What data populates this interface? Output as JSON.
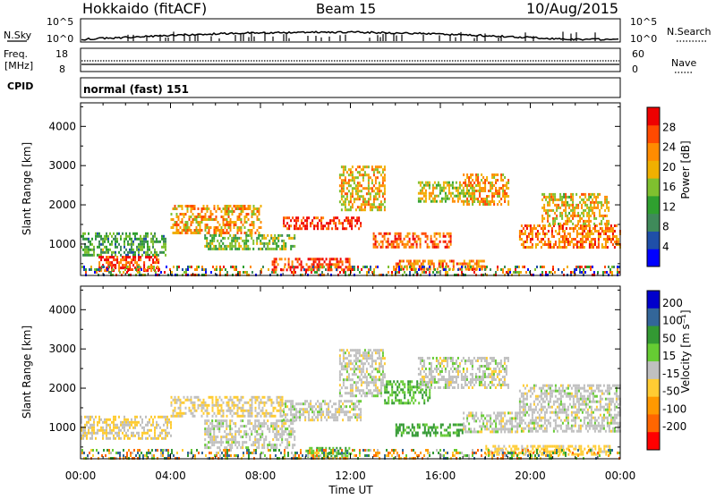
{
  "header": {
    "title": "Hokkaido (fitACF)",
    "beam": "Beam 15",
    "date": "10/Aug/2015"
  },
  "top_panels": {
    "nsky_label": "N.Sky",
    "nsky_ticks": [
      "10^5",
      "10^0"
    ],
    "nsearch_label": "N.Search",
    "freq_label": "Freq.",
    "freq_unit": "[MHz]",
    "freq_ticks": [
      18,
      8
    ],
    "nave_ticks": [
      60,
      0
    ],
    "nave_label": "Nave",
    "cpid_label": "CPID",
    "cpid_text": "normal (fast) 151"
  },
  "colors": {
    "power": [
      "#0000ff",
      "#1f4fa8",
      "#3f8a5a",
      "#2fa02f",
      "#7fc02f",
      "#f0b000",
      "#ff8c00",
      "#ff4a00",
      "#ee0000"
    ],
    "velocity": [
      "#ff0000",
      "#ff6600",
      "#ff9900",
      "#ffcc33",
      "#c0c0c0",
      "#66cc33",
      "#339933",
      "#336699",
      "#0000cc"
    ]
  },
  "chart_data": [
    {
      "type": "heatmap",
      "name": "power-panel",
      "title": "",
      "xlabel": "Time UT",
      "ylabel": "Slant Range [km]",
      "x_ticks": [
        "00:00",
        "04:00",
        "08:00",
        "12:00",
        "16:00",
        "20:00",
        "00:00"
      ],
      "y_ticks": [
        1000,
        2000,
        3000,
        4000
      ],
      "xlim_hours": [
        0,
        24
      ],
      "ylim": [
        200,
        4600
      ],
      "colorbar": {
        "label": "Power [dB]",
        "ticks": [
          4,
          8,
          12,
          16,
          20,
          24,
          28
        ],
        "range": [
          0,
          32
        ]
      },
      "bands": [
        {
          "t0": 0.0,
          "t1": 3.8,
          "r0": 700,
          "r1": 1300,
          "level": 12
        },
        {
          "t0": 0.8,
          "t1": 3.5,
          "r0": 350,
          "r1": 700,
          "level": 28
        },
        {
          "t0": 4.0,
          "t1": 8.0,
          "r0": 1300,
          "r1": 2000,
          "level": 22
        },
        {
          "t0": 5.5,
          "t1": 9.5,
          "r0": 850,
          "r1": 1250,
          "level": 14
        },
        {
          "t0": 9.0,
          "t1": 12.5,
          "r0": 1400,
          "r1": 1700,
          "level": 28
        },
        {
          "t0": 8.5,
          "t1": 12.0,
          "r0": 350,
          "r1": 650,
          "level": 28
        },
        {
          "t0": 11.5,
          "t1": 13.5,
          "r0": 1900,
          "r1": 3000,
          "level": 20
        },
        {
          "t0": 13.0,
          "t1": 16.5,
          "r0": 900,
          "r1": 1300,
          "level": 26
        },
        {
          "t0": 15.0,
          "t1": 17.5,
          "r0": 2100,
          "r1": 2600,
          "level": 18
        },
        {
          "t0": 17.0,
          "t1": 19.0,
          "r0": 2000,
          "r1": 2800,
          "level": 22
        },
        {
          "t0": 19.5,
          "t1": 24.0,
          "r0": 900,
          "r1": 1500,
          "level": 24
        },
        {
          "t0": 20.5,
          "t1": 23.5,
          "r0": 1500,
          "r1": 2300,
          "level": 20
        },
        {
          "t0": 14.0,
          "t1": 18.0,
          "r0": 350,
          "r1": 600,
          "level": 24
        }
      ]
    },
    {
      "type": "heatmap",
      "name": "velocity-panel",
      "title": "",
      "xlabel": "Time UT",
      "ylabel": "Slant Range [km]",
      "x_ticks": [
        "00:00",
        "04:00",
        "08:00",
        "12:00",
        "16:00",
        "20:00",
        "00:00"
      ],
      "y_ticks": [
        1000,
        2000,
        3000,
        4000
      ],
      "xlim_hours": [
        0,
        24
      ],
      "ylim": [
        200,
        4600
      ],
      "colorbar": {
        "label": "Velocity [m s⁻¹]",
        "ticks": [
          200,
          100,
          50,
          15,
          -15,
          -50,
          -100,
          -200
        ]
      },
      "bands": [
        {
          "t0": 0.0,
          "t1": 4.0,
          "r0": 700,
          "r1": 1300,
          "level": -15
        },
        {
          "t0": 4.0,
          "t1": 9.0,
          "r0": 1300,
          "r1": 1800,
          "level": -15
        },
        {
          "t0": 5.5,
          "t1": 9.5,
          "r0": 500,
          "r1": 1200,
          "level": 0
        },
        {
          "t0": 9.0,
          "t1": 12.5,
          "r0": 1200,
          "r1": 1700,
          "level": 0
        },
        {
          "t0": 10.0,
          "t1": 12.0,
          "r0": 250,
          "r1": 500,
          "level": 50
        },
        {
          "t0": 11.5,
          "t1": 13.5,
          "r0": 1800,
          "r1": 3000,
          "level": 0
        },
        {
          "t0": 13.5,
          "t1": 15.5,
          "r0": 1600,
          "r1": 2200,
          "level": 50
        },
        {
          "t0": 14.0,
          "t1": 17.0,
          "r0": 800,
          "r1": 1100,
          "level": 60
        },
        {
          "t0": 15.0,
          "t1": 19.0,
          "r0": 2000,
          "r1": 2800,
          "level": 0
        },
        {
          "t0": 17.0,
          "t1": 19.5,
          "r0": 900,
          "r1": 1400,
          "level": 0
        },
        {
          "t0": 19.5,
          "t1": 24.0,
          "r0": 900,
          "r1": 2100,
          "level": 0
        },
        {
          "t0": 18.0,
          "t1": 23.5,
          "r0": 300,
          "r1": 550,
          "level": -30
        }
      ]
    }
  ]
}
